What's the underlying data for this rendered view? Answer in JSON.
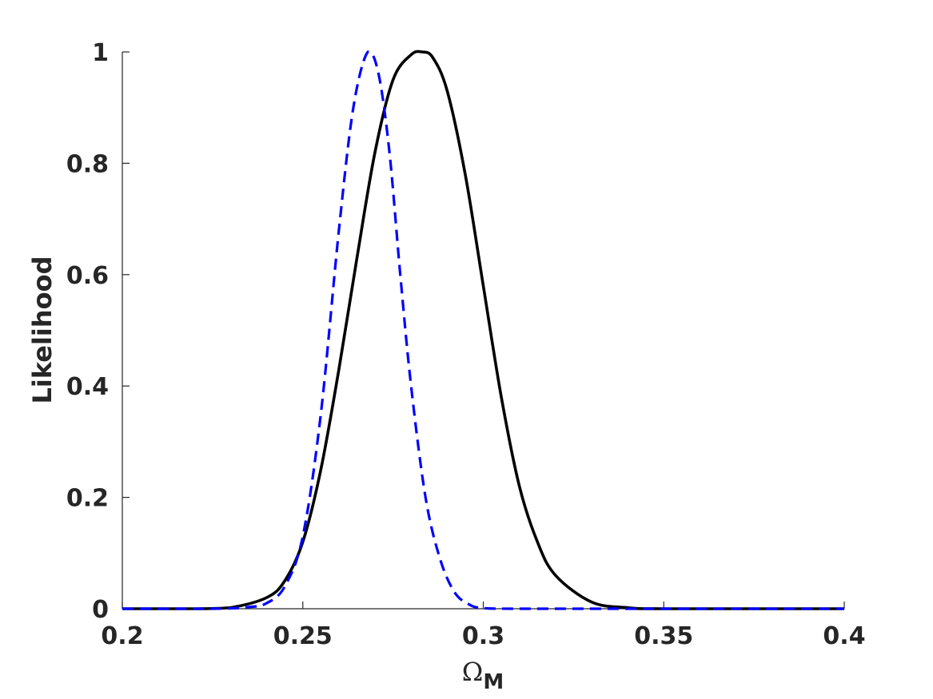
{
  "chart_data": {
    "type": "line",
    "xlabel": "Ω",
    "xlabel_subscript": "M",
    "ylabel": "Likelihood",
    "xlim": [
      0.2,
      0.4
    ],
    "ylim": [
      0,
      1
    ],
    "xticks": [
      0.2,
      0.25,
      0.3,
      0.35,
      0.4
    ],
    "xtick_labels": [
      "0.2",
      "0.25",
      "0.3",
      "0.35",
      "0.4"
    ],
    "yticks": [
      0,
      0.2,
      0.4,
      0.6,
      0.8,
      1
    ],
    "ytick_labels": [
      "0",
      "0.2",
      "0.4",
      "0.6",
      "0.8",
      "1"
    ],
    "grid": false,
    "series": [
      {
        "style": "solid",
        "color": "#000000",
        "x": [
          0.2,
          0.22,
          0.23,
          0.24,
          0.245,
          0.25,
          0.255,
          0.26,
          0.265,
          0.27,
          0.275,
          0.28,
          0.283,
          0.286,
          0.29,
          0.295,
          0.3,
          0.305,
          0.31,
          0.315,
          0.32,
          0.33,
          0.34,
          0.35,
          0.4
        ],
        "y": [
          0.0,
          0.0,
          0.002,
          0.02,
          0.05,
          0.12,
          0.25,
          0.43,
          0.63,
          0.82,
          0.95,
          0.995,
          1.0,
          0.99,
          0.93,
          0.78,
          0.58,
          0.38,
          0.22,
          0.12,
          0.06,
          0.012,
          0.002,
          0.0,
          0.0
        ]
      },
      {
        "style": "dashed",
        "color": "#0000ff",
        "x": [
          0.2,
          0.225,
          0.235,
          0.24,
          0.245,
          0.25,
          0.255,
          0.26,
          0.264,
          0.268,
          0.271,
          0.274,
          0.277,
          0.28,
          0.284,
          0.288,
          0.292,
          0.296,
          0.3,
          0.31,
          0.35,
          0.4
        ],
        "y": [
          0.0,
          0.0,
          0.003,
          0.01,
          0.04,
          0.13,
          0.35,
          0.68,
          0.9,
          1.0,
          0.96,
          0.82,
          0.6,
          0.4,
          0.2,
          0.09,
          0.03,
          0.008,
          0.001,
          0.0,
          0.0,
          0.0
        ]
      }
    ]
  }
}
